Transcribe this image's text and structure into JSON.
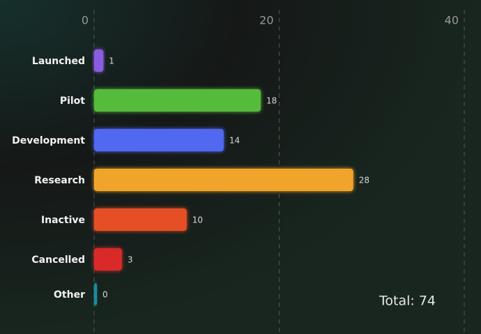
{
  "chart_data": {
    "type": "barh",
    "categories": [
      "Launched",
      "Pilot",
      "Development",
      "Research",
      "Inactive",
      "Cancelled",
      "Other"
    ],
    "values": [
      1,
      18,
      14,
      28,
      10,
      3,
      0
    ],
    "colors": [
      "#8a5be0",
      "#55bb3a",
      "#5168f0",
      "#f0a52a",
      "#e65028",
      "#d92c2c",
      "#1a8a9e"
    ],
    "xlim": [
      0,
      40
    ],
    "xticks": [
      0,
      20,
      40
    ],
    "grid": true,
    "annotation": "Total: 74"
  }
}
